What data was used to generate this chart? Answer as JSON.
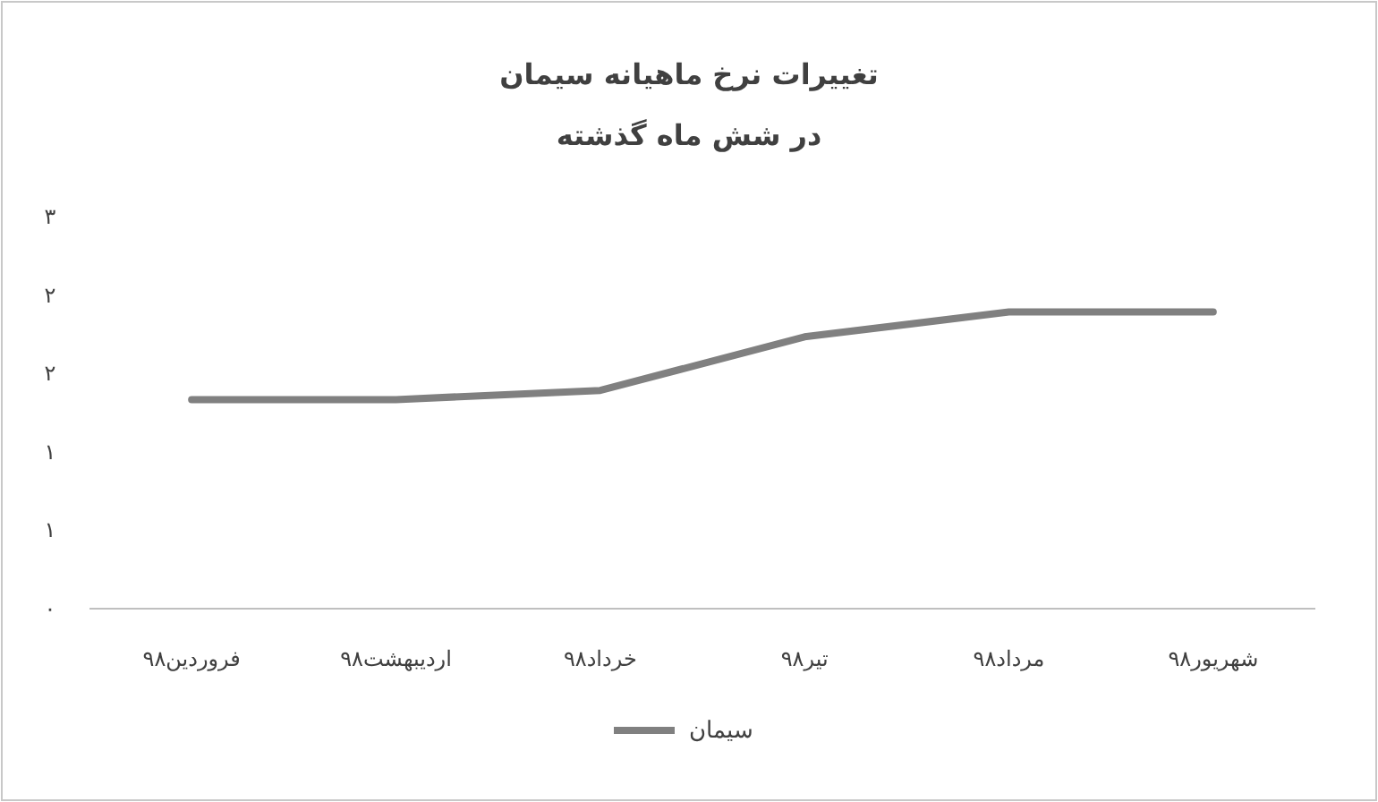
{
  "chart_data": {
    "type": "line",
    "title": "تغییرات نرخ ماهیانه سیمان",
    "subtitle": "در شش ماه گذشته",
    "categories": [
      "فروردین۹۸",
      "اردیبهشت۹۸",
      "خرداد۹۸",
      "تیر۹۸",
      "مرداد۹۸",
      "شهریور۹۸"
    ],
    "series": [
      {
        "name": "سیمان",
        "color": "#808080",
        "values": [
          1.6,
          1.6,
          1.67,
          2.08,
          2.27,
          2.27
        ]
      }
    ],
    "ylim": [
      0,
      3
    ],
    "yticks": [
      {
        "value": 0,
        "label": "۰"
      },
      {
        "value": 0.6,
        "label": "۱"
      },
      {
        "value": 1.2,
        "label": "۱"
      },
      {
        "value": 1.8,
        "label": "۲"
      },
      {
        "value": 2.4,
        "label": "۲"
      },
      {
        "value": 3,
        "label": "۳"
      }
    ],
    "grid": false,
    "legend": "bottom",
    "marker": "none",
    "line_style": "solid"
  }
}
